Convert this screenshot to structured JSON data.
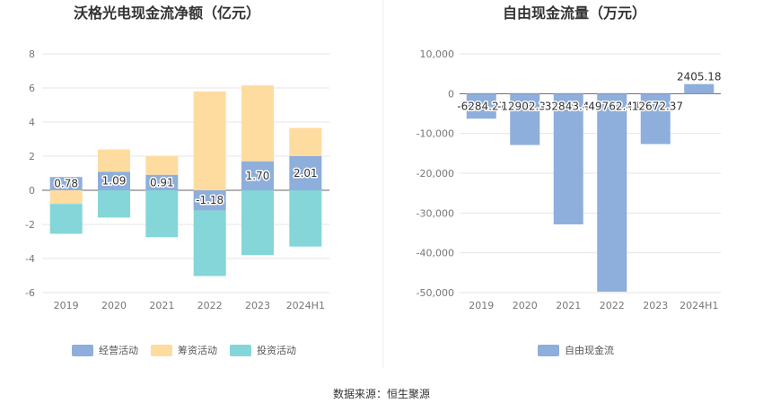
{
  "source": "数据来源：恒生聚源",
  "chart_data": [
    {
      "type": "bar",
      "stacked": true,
      "title": "沃格光电现金流净额（亿元）",
      "categories": [
        "2019",
        "2020",
        "2021",
        "2022",
        "2023",
        "2024H1"
      ],
      "ylim": [
        -6,
        8
      ],
      "yticks": [
        -6,
        -4,
        -2,
        0,
        2,
        4,
        6,
        8
      ],
      "grid": true,
      "legend_position": "bottom",
      "series": [
        {
          "name": "经营活动",
          "color": "#8eaedb",
          "values": [
            0.78,
            1.09,
            0.91,
            -1.18,
            1.7,
            2.01
          ],
          "show_labels": true
        },
        {
          "name": "筹资活动",
          "color": "#fedca0",
          "values": [
            -0.8,
            1.3,
            1.1,
            5.8,
            4.45,
            1.65
          ],
          "show_labels": false
        },
        {
          "name": "投资活动",
          "color": "#84d6d8",
          "values": [
            -1.75,
            -1.6,
            -2.75,
            -3.85,
            -3.8,
            -3.3
          ],
          "show_labels": false
        }
      ],
      "labels": [
        "0.78",
        "1.09",
        "0.91",
        "-1.18",
        "1.70",
        "2.01"
      ]
    },
    {
      "type": "bar",
      "title": "自由现金流量（万元）",
      "categories": [
        "2019",
        "2020",
        "2021",
        "2022",
        "2023",
        "2024H1"
      ],
      "ylim": [
        -50000,
        10000
      ],
      "yticks": [
        -50000,
        -40000,
        -30000,
        -20000,
        -10000,
        0,
        10000
      ],
      "ytick_labels": [
        "-50,000",
        "-40,000",
        "-30,000",
        "-20,000",
        "-10,000",
        "0",
        "10,000"
      ],
      "grid": true,
      "legend_position": "bottom",
      "series": [
        {
          "name": "自由现金流",
          "color": "#8eaedb",
          "values": [
            -6284.27,
            -12902.31,
            -32843.48,
            -49762.44,
            -12672.37,
            2405.18
          ]
        }
      ],
      "labels": [
        "-6284.27",
        "-12902.31",
        "-32843.48",
        "-49762.44",
        "-12672.37",
        "2405.18"
      ]
    }
  ]
}
